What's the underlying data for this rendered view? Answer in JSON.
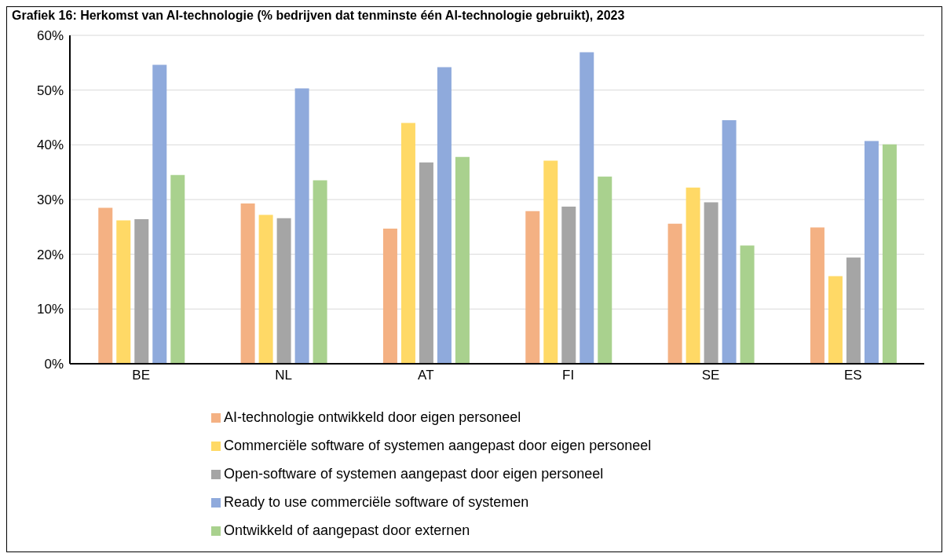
{
  "chart_data": {
    "type": "bar",
    "title": "Grafiek 16: Herkomst van AI-technologie (% bedrijven dat tenminste één AI-technologie gebruikt), 2023",
    "categories": [
      "BE",
      "NL",
      "AT",
      "FI",
      "SE",
      "ES"
    ],
    "series": [
      {
        "name": "AI-technologie ontwikkeld door eigen personeel",
        "color": "#f4b183",
        "values": [
          28.5,
          29.3,
          24.7,
          27.9,
          25.6,
          24.9
        ]
      },
      {
        "name": "Commerciële software of systemen aangepast door eigen personeel",
        "color": "#ffd966",
        "values": [
          26.2,
          27.2,
          44.0,
          37.1,
          32.2,
          16.0
        ]
      },
      {
        "name": "Open-software of systemen aangepast door eigen personeel",
        "color": "#a5a5a5",
        "values": [
          26.4,
          26.6,
          36.8,
          28.7,
          29.5,
          19.4
        ]
      },
      {
        "name": "Ready to use commerciële software of systemen",
        "color": "#8faadc",
        "values": [
          54.6,
          50.3,
          54.2,
          56.9,
          44.5,
          40.7
        ]
      },
      {
        "name": "Ontwikkeld of aangepast door externen",
        "color": "#a9d18e",
        "values": [
          34.5,
          33.5,
          37.8,
          34.2,
          21.6,
          40.1
        ]
      }
    ],
    "ylim": [
      0,
      60
    ],
    "yticks": [
      {
        "value": 0,
        "label": "0%"
      },
      {
        "value": 10,
        "label": "10%"
      },
      {
        "value": 20,
        "label": "20%"
      },
      {
        "value": 30,
        "label": "30%"
      },
      {
        "value": 40,
        "label": "40%"
      },
      {
        "value": 50,
        "label": "50%"
      },
      {
        "value": 60,
        "label": "60%"
      }
    ],
    "grid": "y",
    "legend": "bottom"
  }
}
